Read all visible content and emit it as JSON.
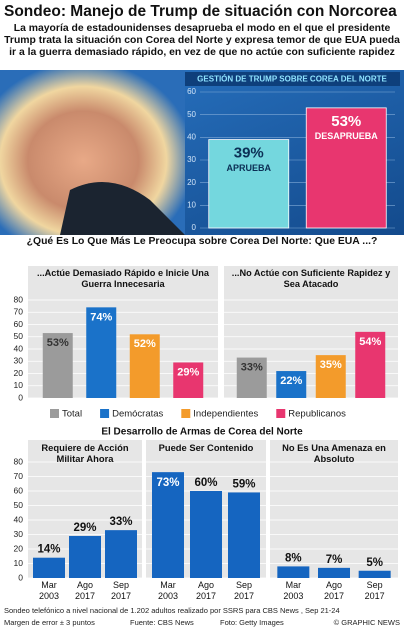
{
  "header": {
    "title": "Sondeo: Manejo de Trump de situación con Norcorea",
    "subtitle": "La mayoría de estadounidenses desaprueba el modo en el que el presidente Trump trata la situación con Corea del Norte y expresa temor de que EUA pueda ir a la guerra demasiado rápido, en vez de que no actúe con suficiente rapidez"
  },
  "chart_data": [
    {
      "type": "bar",
      "title": "GESTIÓN DE TRUMP SOBRE COREA DEL NORTE",
      "categories": [
        "APRUEBA",
        "DESAPRUEBA"
      ],
      "values": [
        39,
        53
      ],
      "value_labels": [
        "39%",
        "53%"
      ],
      "colors": [
        "#74d7de",
        "#e8366f"
      ],
      "ylim": [
        0,
        60
      ],
      "yticks": [
        0,
        10,
        20,
        30,
        40,
        50,
        60
      ],
      "grid": true
    },
    {
      "type": "grouped_bar",
      "title": "¿Qué Es Lo Que Más Le Preocupa sobre Corea Del Norte: Que EUA ...?",
      "categories": [
        "...Actúe Demasiado Rápido e Inicie Una Guerra Innecesaria",
        "...No Actúe con Suficiente Rapidez y Sea Atacado"
      ],
      "series": [
        {
          "name": "Total",
          "color": "#9b9b9b",
          "values": [
            53,
            33
          ],
          "value_labels": [
            "53%",
            "33%"
          ]
        },
        {
          "name": "Demócratas",
          "color": "#1a72c9",
          "values": [
            74,
            22
          ],
          "value_labels": [
            "74%",
            "22%"
          ]
        },
        {
          "name": "Independientes",
          "color": "#f39b2b",
          "values": [
            52,
            35
          ],
          "value_labels": [
            "52%",
            "35%"
          ]
        },
        {
          "name": "Republicanos",
          "color": "#e8366f",
          "values": [
            29,
            54
          ],
          "value_labels": [
            "29%",
            "54%"
          ]
        }
      ],
      "ylim": [
        0,
        80
      ],
      "yticks": [
        0,
        10,
        20,
        30,
        40,
        50,
        60,
        70,
        80
      ],
      "grid": true,
      "legend": "bottom"
    },
    {
      "type": "panel_bar",
      "title": "El Desarrollo de Armas de Corea del Norte",
      "categories": [
        "Mar 2003",
        "Ago 2017",
        "Sep 2017"
      ],
      "color": "#1565c0",
      "panels": [
        {
          "title": "Requiere de Acción Militar Ahora",
          "values": [
            14,
            29,
            33
          ],
          "value_labels": [
            "14%",
            "29%",
            "33%"
          ]
        },
        {
          "title": "Puede Ser Contenido",
          "values": [
            73,
            60,
            59
          ],
          "value_labels": [
            "73%",
            "60%",
            "59%"
          ]
        },
        {
          "title": "No Es Una Amenaza en Absoluto",
          "values": [
            8,
            7,
            5
          ],
          "value_labels": [
            "8%",
            "7%",
            "5%"
          ]
        }
      ],
      "ylim": [
        0,
        80
      ],
      "yticks": [
        0,
        10,
        20,
        30,
        40,
        50,
        60,
        70,
        80
      ],
      "grid": true
    }
  ],
  "footer": {
    "note": "Sondeo telefónico a nivel nacional de 1.202 adultos realizado por SSRS para CBS News , Sep 21-24",
    "margin": "Margen de error ± 3 puntos",
    "source": "Fuente: CBS News",
    "photo": "Foto: Getty Images",
    "credit": "© GRAPHIC NEWS"
  }
}
